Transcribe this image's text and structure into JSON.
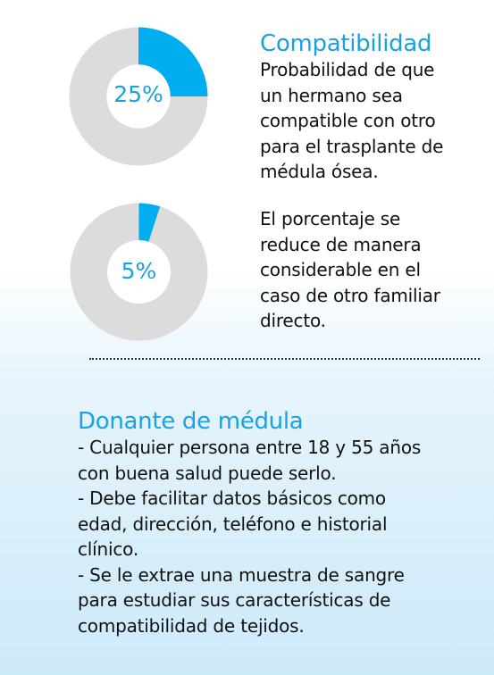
{
  "chart_data": [
    {
      "type": "pie",
      "center_label": "25%",
      "values": [
        25,
        75
      ],
      "colors": [
        "#00aeef",
        "#dcdcdc"
      ]
    },
    {
      "type": "pie",
      "center_label": "5%",
      "values": [
        5,
        95
      ],
      "colors": [
        "#00aeef",
        "#dcdcdc"
      ]
    }
  ],
  "compat": {
    "title": "Compatibilidad",
    "lines": [
      "Probabilidad de que",
      "un hermano sea",
      "compatible con otro",
      "para el trasplante de",
      "médula ósea."
    ]
  },
  "reduce": {
    "lines": [
      "El porcentaje se",
      "reduce de manera",
      "considerable en el",
      "caso de otro familiar",
      "directo."
    ]
  },
  "donor": {
    "title": "Donante de médula",
    "lines": [
      "- Cualquier persona entre 18 y 55 años",
      "con buena salud puede serlo.",
      "- Debe facilitar datos básicos como",
      "edad, dirección, teléfono e historial",
      "clínico.",
      "- Se le extrae una muestra de sangre",
      "para estudiar sus características de",
      "compatibilidad de tejidos."
    ]
  },
  "colors": {
    "accent": "#00aeef",
    "heading": "#1ba1e2",
    "ring": "#dcdcdc"
  }
}
